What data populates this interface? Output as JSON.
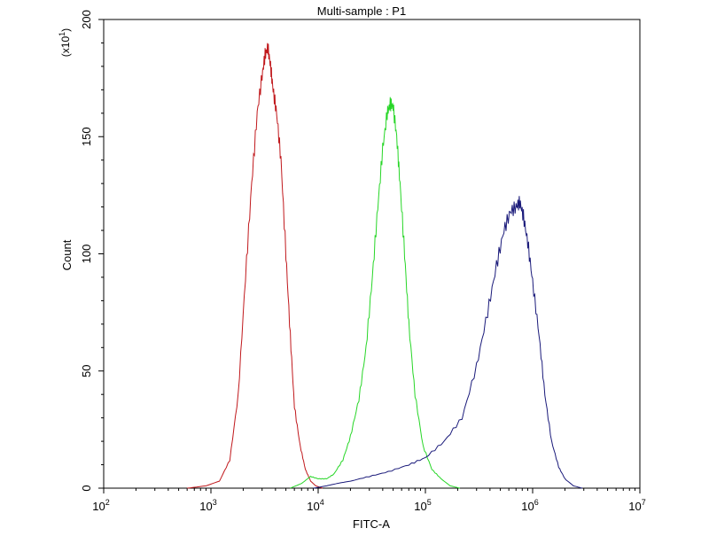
{
  "chart_data": {
    "type": "line",
    "title": "Multi-sample : P1",
    "xlabel": "FITC-A",
    "ylabel": "Count",
    "y_multiplier_label": "(x10",
    "y_multiplier_exp": "1",
    "y_multiplier_close": ")",
    "x_scale": "log",
    "xlim": [
      100,
      10000000
    ],
    "ylim": [
      0,
      200
    ],
    "x_ticks": [
      {
        "value": 100,
        "base": "10",
        "exp": "2"
      },
      {
        "value": 1000,
        "base": "10",
        "exp": "3"
      },
      {
        "value": 10000,
        "base": "10",
        "exp": "4"
      },
      {
        "value": 100000,
        "base": "10",
        "exp": "5"
      },
      {
        "value": 1000000,
        "base": "10",
        "exp": "6"
      },
      {
        "value": 10000000,
        "base": "10",
        "exp": "7"
      }
    ],
    "y_ticks": [
      {
        "value": 0,
        "label": "0"
      },
      {
        "value": 50,
        "label": "50"
      },
      {
        "value": 100,
        "label": "100"
      },
      {
        "value": 150,
        "label": "150"
      },
      {
        "value": 200,
        "label": "200"
      }
    ],
    "grid": false,
    "legend": "none",
    "series": [
      {
        "color": "#c0181c",
        "x": [
          600,
          900,
          1200,
          1500,
          1800,
          2100,
          2400,
          2700,
          3000,
          3200,
          3400,
          3600,
          3800,
          4100,
          4500,
          5000,
          5500,
          6000,
          6800,
          7600,
          8500,
          9500,
          11000
        ],
        "y": [
          0,
          1,
          3,
          12,
          40,
          90,
          130,
          160,
          176,
          185,
          188,
          180,
          170,
          160,
          140,
          100,
          65,
          35,
          18,
          8,
          3,
          1,
          0
        ]
      },
      {
        "color": "#27d627",
        "x": [
          5500,
          7000,
          8500,
          10000,
          12000,
          14000,
          17000,
          20000,
          24000,
          28000,
          32000,
          36000,
          40000,
          44000,
          47000,
          50000,
          54000,
          58000,
          64000,
          70000,
          80000,
          95000,
          115000,
          140000,
          170000,
          210000
        ],
        "y": [
          0,
          2,
          5,
          4,
          4,
          6,
          12,
          22,
          38,
          60,
          90,
          120,
          145,
          160,
          164,
          163,
          150,
          130,
          100,
          70,
          40,
          18,
          8,
          4,
          1,
          0
        ]
      },
      {
        "color": "#1a1a7a",
        "x": [
          9000,
          12000,
          15000,
          20000,
          30000,
          45000,
          70000,
          100000,
          150000,
          220000,
          300000,
          380000,
          460000,
          540000,
          620000,
          700000,
          760000,
          820000,
          900000,
          1000000,
          1150000,
          1300000,
          1500000,
          1750000,
          2000000,
          2400000,
          2900000
        ],
        "y": [
          0,
          1,
          2,
          3,
          5,
          7,
          10,
          13,
          20,
          30,
          52,
          75,
          95,
          110,
          118,
          120,
          122,
          116,
          105,
          88,
          65,
          40,
          20,
          9,
          4,
          1,
          0
        ]
      }
    ]
  }
}
